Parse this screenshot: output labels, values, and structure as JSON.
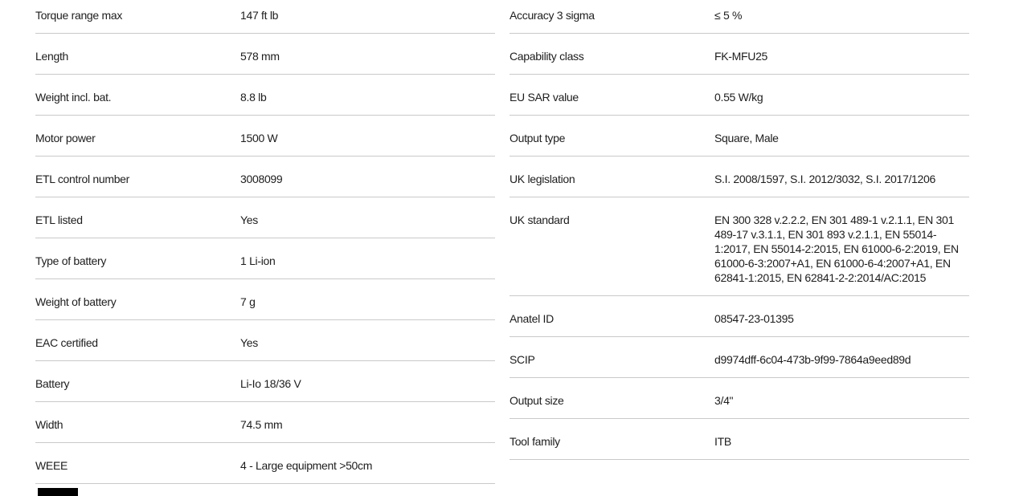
{
  "page": {
    "background_color": "#ffffff",
    "text_color": "#1d1d1d",
    "divider_color": "#c9c9c9",
    "cutoff_bar_color": "#000000"
  },
  "tables": {
    "left": {
      "rows": [
        {
          "label": "Torque range max",
          "value": "147 ft lb"
        },
        {
          "label": "Length",
          "value": "578 mm"
        },
        {
          "label": "Weight incl. bat.",
          "value": "8.8 lb"
        },
        {
          "label": "Motor power",
          "value": "1500 W"
        },
        {
          "label": "ETL control number",
          "value": "3008099"
        },
        {
          "label": "ETL listed",
          "value": "Yes"
        },
        {
          "label": "Type of battery",
          "value": "1 Li-ion"
        },
        {
          "label": "Weight of battery",
          "value": "7 g"
        },
        {
          "label": "EAC certified",
          "value": "Yes"
        },
        {
          "label": "Battery",
          "value": "Li-Io 18/36 V"
        },
        {
          "label": "Width",
          "value": "74.5 mm"
        },
        {
          "label": "WEEE",
          "value": "4 - Large equipment >50cm"
        }
      ]
    },
    "right": {
      "rows": [
        {
          "label": "Accuracy 3 sigma",
          "value": "≤ 5 %"
        },
        {
          "label": "Capability class",
          "value": "FK-MFU25"
        },
        {
          "label": "EU SAR value",
          "value": "0.55 W/kg"
        },
        {
          "label": "Output type",
          "value": "Square, Male"
        },
        {
          "label": "UK legislation",
          "value": "S.I. 2008/1597, S.I. 2012/3032, S.I. 2017/1206"
        },
        {
          "label": "UK standard",
          "value": "EN 300 328 v.2.2.2, EN 301 489-1 v.2.1.1, EN 301 489-17 v.3.1.1, EN 301 893 v.2.1.1, EN 55014-1:2017, EN 55014-2:2015, EN 61000-6-2:2019, EN 61000-6-3:2007+A1, EN 61000-6-4:2007+A1, EN 62841-1:2015, EN 62841-2-2:2014/AC:2015"
        },
        {
          "label": "Anatel ID",
          "value": "08547-23-01395"
        },
        {
          "label": "SCIP",
          "value": "d9974dff-6c04-473b-9f99-7864a9eed89d"
        },
        {
          "label": "Output size",
          "value": "3/4\""
        },
        {
          "label": "Tool family",
          "value": "ITB"
        }
      ]
    }
  }
}
